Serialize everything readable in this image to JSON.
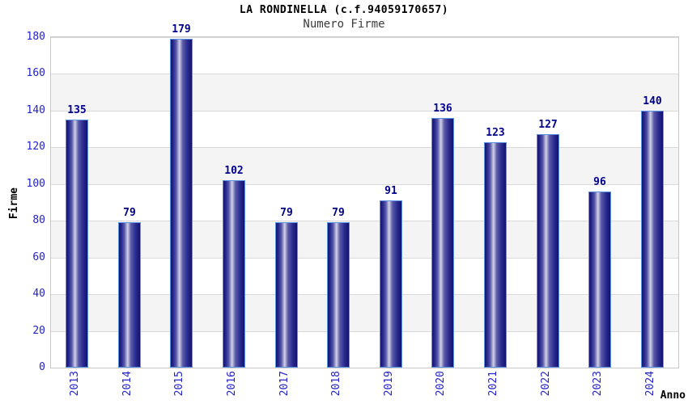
{
  "chart_data": {
    "type": "bar",
    "title": "LA RONDINELLA (c.f.94059170657)",
    "subtitle": "Numero Firme",
    "xlabel": "Anno",
    "ylabel": "Firme",
    "categories": [
      "2013",
      "2014",
      "2015",
      "2016",
      "2017",
      "2018",
      "2019",
      "2020",
      "2021",
      "2022",
      "2023",
      "2024"
    ],
    "values": [
      135,
      79,
      179,
      102,
      79,
      79,
      91,
      136,
      123,
      127,
      96,
      140
    ],
    "ylim": [
      0,
      180
    ],
    "ytick_step": 20,
    "grid": "horizontal-only",
    "legend": "none",
    "bar_style": "vertical-cylinder-gradient",
    "colors": {
      "background": "#ffffff",
      "title": "#000000",
      "subtitle": "#3a3a3a",
      "axis_title": "#000000",
      "tick_label": "#2222cc",
      "value_label": "#00008b",
      "bar_dark": "#12126e",
      "bar_mid": "#5a5aaa",
      "bar_highlight": "#d2d2e6",
      "bar_border": "#5e93e3",
      "band_fill": "#f4f4f4",
      "grid_line": "#d9d9d9",
      "plot_border": "#c9c9c9"
    }
  }
}
